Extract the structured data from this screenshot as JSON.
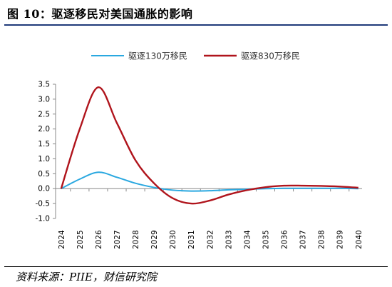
{
  "figure": {
    "title": "图 10：驱逐移民对美国通胀的影响",
    "source": "资料来源：PIIE，财信研究院"
  },
  "chart_data": {
    "type": "line",
    "x": [
      2024,
      2025,
      2026,
      2027,
      2028,
      2029,
      2030,
      2031,
      2032,
      2033,
      2034,
      2035,
      2036,
      2037,
      2038,
      2039,
      2040
    ],
    "x_tick_labels": [
      "2024",
      "2025",
      "2026",
      "2027",
      "2028",
      "2029",
      "2030",
      "2031",
      "2032",
      "2033",
      "2034",
      "2035",
      "2036",
      "2037",
      "2038",
      "2039",
      "2040"
    ],
    "ylim": [
      -1.0,
      3.5
    ],
    "y_ticks": [
      -1.0,
      -0.5,
      0.0,
      0.5,
      1.0,
      1.5,
      2.0,
      2.5,
      3.0,
      3.5
    ],
    "y_tick_labels": [
      "-1.0",
      "-0.5",
      "0.0",
      "0.5",
      "1.0",
      "1.5",
      "2.0",
      "2.5",
      "3.0",
      "3.5"
    ],
    "legend_position": "top",
    "grid": false,
    "series": [
      {
        "name": "驱逐130万移民",
        "color": "#2aa8e0",
        "values": [
          0.0,
          0.32,
          0.55,
          0.38,
          0.18,
          0.04,
          -0.05,
          -0.08,
          -0.07,
          -0.04,
          -0.02,
          0.0,
          0.01,
          0.01,
          0.01,
          0.01,
          0.0
        ]
      },
      {
        "name": "驱逐830万移民",
        "color": "#b0141c",
        "values": [
          0.0,
          2.0,
          3.4,
          2.2,
          0.95,
          0.18,
          -0.32,
          -0.5,
          -0.4,
          -0.2,
          -0.05,
          0.05,
          0.1,
          0.1,
          0.09,
          0.07,
          0.03
        ]
      }
    ]
  }
}
